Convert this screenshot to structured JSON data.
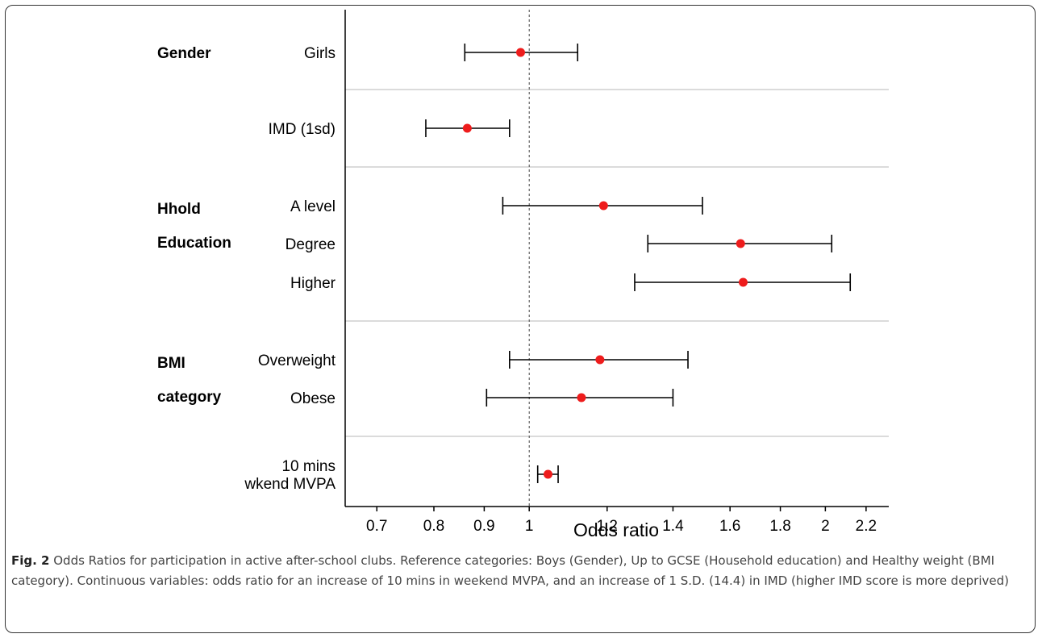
{
  "chart_data": {
    "type": "forest",
    "xlabel": "Odds ratio",
    "x_scale": "log",
    "xlim": [
      0.65,
      2.32
    ],
    "reference_line": 1,
    "ticks": [
      0.7,
      0.8,
      0.9,
      1,
      1.2,
      1.4,
      1.6,
      1.8,
      2,
      2.2
    ],
    "tick_labels": [
      "0.7",
      "0.8",
      "0.9",
      "1",
      "1.2",
      "1.4",
      "1.6",
      "1.8",
      "2",
      "2.2"
    ],
    "groups": [
      {
        "label_lines": [
          "Gender"
        ],
        "rows": [
          {
            "label_lines": [
              "Girls"
            ],
            "or": 0.98,
            "lo": 0.86,
            "hi": 1.12
          }
        ]
      },
      {
        "label_lines": [],
        "rows": [
          {
            "label_lines": [
              "IMD (1sd)"
            ],
            "or": 0.865,
            "lo": 0.785,
            "hi": 0.955
          }
        ]
      },
      {
        "label_lines": [
          "Hhold",
          "Education"
        ],
        "rows": [
          {
            "label_lines": [
              "A level"
            ],
            "or": 1.19,
            "lo": 0.94,
            "hi": 1.5
          },
          {
            "label_lines": [
              "Degree"
            ],
            "or": 1.64,
            "lo": 1.32,
            "hi": 2.03
          },
          {
            "label_lines": [
              "Higher"
            ],
            "or": 1.65,
            "lo": 1.28,
            "hi": 2.12
          }
        ]
      },
      {
        "label_lines": [
          "BMI",
          "category"
        ],
        "rows": [
          {
            "label_lines": [
              "Overweight"
            ],
            "or": 1.18,
            "lo": 0.955,
            "hi": 1.45
          },
          {
            "label_lines": [
              "Obese"
            ],
            "or": 1.13,
            "lo": 0.905,
            "hi": 1.4
          }
        ]
      },
      {
        "label_lines": [],
        "rows": [
          {
            "label_lines": [
              "10 mins",
              "wkend MVPA"
            ],
            "or": 1.045,
            "lo": 1.02,
            "hi": 1.07
          }
        ]
      }
    ]
  },
  "caption": {
    "label": "Fig. 2",
    "text": " Odds Ratios for participation in active after-school clubs. Reference categories: Boys (Gender), Up to GCSE (Household education) and Healthy weight (BMI category). Continuous variables: odds ratio for an increase of 10 mins in weekend MVPA, and an increase of 1 S.D. (14.4) in IMD (higher IMD score is more deprived)"
  },
  "colors": {
    "point": "#ee1c1c",
    "bars": "#000000",
    "separator": "#cfcfcf",
    "refline": "#444444"
  }
}
